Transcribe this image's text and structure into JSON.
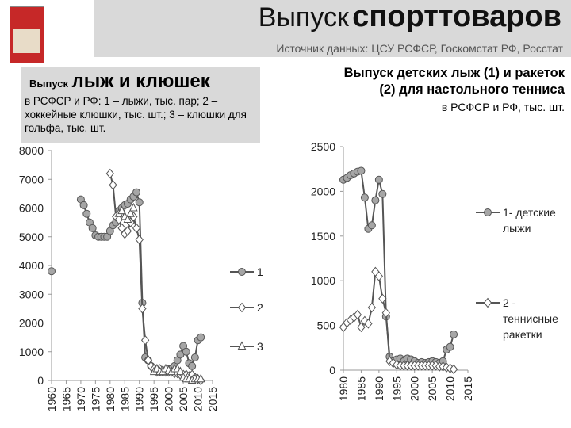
{
  "header": {
    "title_part1": "Выпуск",
    "title_part2": "спорттоваров",
    "source": "Источник данных: ЦСУ РСФСР, Госкомстат РФ, Росстат"
  },
  "chart_data": [
    {
      "type": "line",
      "title_part1": "Выпуск",
      "title_part2": "лыж и клюшек",
      "subtitle": "в РСФСР и РФ: 1 – лыжи, тыс. пар; 2 – хоккейные клюшки, тыс. шт.; 3 – клюшки для гольфа, тыс. шт.",
      "x": [
        1960,
        1965,
        1970,
        1971,
        1972,
        1973,
        1974,
        1975,
        1976,
        1977,
        1978,
        1979,
        1980,
        1981,
        1982,
        1983,
        1984,
        1985,
        1986,
        1987,
        1988,
        1989,
        1990,
        1991,
        1992,
        1993,
        1994,
        1995,
        1996,
        1997,
        1998,
        1999,
        2000,
        2001,
        2002,
        2003,
        2004,
        2005,
        2006,
        2007,
        2008,
        2009,
        2010,
        2011
      ],
      "xlim": [
        1960,
        2015
      ],
      "xticks": [
        1960,
        1965,
        1970,
        1975,
        1980,
        1985,
        1990,
        1995,
        2000,
        2005,
        2010,
        2015
      ],
      "ylim": [
        0,
        8000
      ],
      "yticks": [
        0,
        1000,
        2000,
        3000,
        4000,
        5000,
        6000,
        7000,
        8000
      ],
      "series": [
        {
          "name": "1",
          "color": "#555555",
          "marker": "circle",
          "values": [
            3800,
            null,
            6300,
            6100,
            5800,
            5500,
            5300,
            5050,
            5000,
            5000,
            5000,
            5000,
            5200,
            5400,
            5500,
            5900,
            6000,
            6100,
            6150,
            6300,
            6400,
            6550,
            6200,
            2700,
            800,
            700,
            500,
            400,
            350,
            300,
            300,
            350,
            400,
            400,
            500,
            700,
            900,
            1200,
            1000,
            600,
            500,
            800,
            1400,
            1500
          ]
        },
        {
          "name": "2",
          "color": "#555555",
          "marker": "diamond",
          "values": [
            null,
            null,
            null,
            null,
            null,
            null,
            null,
            null,
            null,
            null,
            null,
            null,
            7200,
            6800,
            5700,
            5600,
            5300,
            5100,
            5200,
            5500,
            5700,
            5300,
            4900,
            2500,
            1400,
            700,
            500,
            400,
            300,
            400,
            350,
            300,
            300,
            300,
            250,
            250,
            200,
            200,
            200,
            150,
            200,
            100,
            50,
            0
          ]
        },
        {
          "name": "3",
          "color": "#555555",
          "marker": "triangle",
          "values": [
            null,
            null,
            null,
            null,
            null,
            null,
            null,
            null,
            null,
            null,
            null,
            null,
            null,
            null,
            null,
            5800,
            5900,
            5700,
            5600,
            5800,
            6000,
            null,
            null,
            null,
            null,
            null,
            null,
            300,
            400,
            300,
            300,
            400,
            350,
            300,
            400,
            400,
            300,
            100,
            50,
            50,
            0,
            50,
            50,
            50
          ]
        }
      ]
    },
    {
      "type": "line",
      "title": "Выпуск детских лыж (1) и ракеток (2) для настольного тенниса",
      "subtitle": "в РСФСР и РФ, тыс. шт.",
      "x": [
        1980,
        1981,
        1982,
        1983,
        1984,
        1985,
        1986,
        1987,
        1988,
        1989,
        1990,
        1991,
        1992,
        1993,
        1994,
        1995,
        1996,
        1997,
        1998,
        1999,
        2000,
        2001,
        2002,
        2003,
        2004,
        2005,
        2006,
        2007,
        2008,
        2009,
        2010,
        2011
      ],
      "xlim": [
        1980,
        2015
      ],
      "xticks": [
        1980,
        1985,
        1990,
        1995,
        2000,
        2005,
        2010,
        2015
      ],
      "ylim": [
        0,
        2500
      ],
      "yticks": [
        0,
        500,
        1000,
        1500,
        2000,
        2500
      ],
      "series": [
        {
          "name": "1- детские лыжи",
          "color": "#555555",
          "marker": "circle",
          "values": [
            2130,
            2150,
            2180,
            2200,
            2220,
            2230,
            1930,
            1580,
            1620,
            1900,
            2130,
            1970,
            600,
            150,
            100,
            120,
            130,
            100,
            130,
            120,
            100,
            80,
            90,
            80,
            90,
            100,
            90,
            80,
            100,
            230,
            260,
            400
          ]
        },
        {
          "name": "2 - теннисные ракетки",
          "color": "#555555",
          "marker": "diamond",
          "values": [
            480,
            530,
            560,
            590,
            620,
            480,
            550,
            520,
            700,
            1100,
            1050,
            800,
            640,
            100,
            80,
            60,
            50,
            50,
            50,
            50,
            50,
            50,
            50,
            50,
            50,
            50,
            50,
            40,
            40,
            30,
            20,
            10
          ]
        }
      ]
    }
  ]
}
